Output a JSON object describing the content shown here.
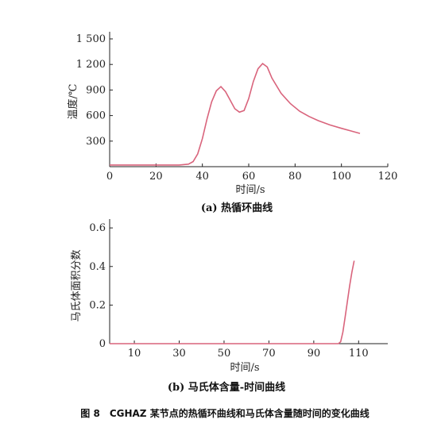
{
  "figure_caption": "图 8　CGHAZ 某节点的热循环曲线和马氏体含量随时间的变化曲线",
  "chart_data": [
    {
      "type": "line",
      "caption": "(a) 热循环曲线",
      "xlabel": "时间/s",
      "ylabel": "温度/℃",
      "xlim": [
        0,
        120
      ],
      "ylim": [
        0,
        1500
      ],
      "xticks": [
        "0",
        "20",
        "40",
        "60",
        "80",
        "100",
        "120"
      ],
      "xtick_values": [
        0,
        20,
        40,
        60,
        80,
        100,
        120
      ],
      "yticks": [
        "300",
        "600",
        "900",
        "1 200",
        "1 500"
      ],
      "ytick_values": [
        300,
        600,
        900,
        1200,
        1500
      ],
      "line_color": "#d9647c",
      "series": [
        {
          "x": [
            0,
            30,
            34,
            36,
            38,
            40,
            42,
            44,
            46,
            48,
            50,
            52,
            54,
            56,
            58,
            60,
            62,
            64,
            66,
            68,
            70,
            74,
            78,
            82,
            86,
            90,
            95,
            100,
            104,
            108
          ],
          "y": [
            20,
            20,
            30,
            60,
            150,
            330,
            560,
            760,
            890,
            940,
            880,
            780,
            680,
            640,
            660,
            800,
            1000,
            1150,
            1210,
            1170,
            1040,
            860,
            740,
            650,
            590,
            540,
            490,
            450,
            420,
            390
          ]
        }
      ]
    },
    {
      "type": "line",
      "caption": "(b) 马氏体含量-时间曲线",
      "xlabel": "时间/s",
      "ylabel": "马氏体面积分数",
      "xlim": [
        -1,
        123
      ],
      "ylim": [
        0,
        0.65
      ],
      "xticks": [
        "10",
        "30",
        "50",
        "70",
        "90",
        "110"
      ],
      "xtick_values": [
        10,
        30,
        50,
        70,
        90,
        110
      ],
      "yticks": [
        "0",
        "0.2",
        "0.4",
        "0.6"
      ],
      "ytick_values": [
        0,
        0.2,
        0.4,
        0.6
      ],
      "line_color": "#d9647c",
      "series": [
        {
          "x": [
            -1,
            101,
            102,
            103,
            104,
            105,
            106,
            107,
            108
          ],
          "y": [
            0,
            0,
            0.01,
            0.06,
            0.14,
            0.22,
            0.3,
            0.37,
            0.43
          ]
        }
      ]
    }
  ]
}
